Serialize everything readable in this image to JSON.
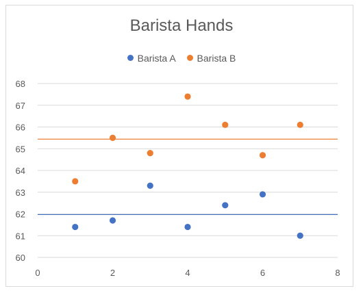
{
  "chart_data": {
    "type": "scatter",
    "title": "Barista Hands",
    "xlabel": "",
    "ylabel": "",
    "xlim": [
      0,
      8
    ],
    "ylim": [
      60,
      68
    ],
    "xticks": [
      0,
      2,
      4,
      6,
      8
    ],
    "yticks": [
      60,
      61,
      62,
      63,
      64,
      65,
      66,
      67,
      68
    ],
    "grid": true,
    "legend_position": "top",
    "series": [
      {
        "name": "Barista A",
        "color": "#4472C4",
        "points": [
          [
            1,
            61.4
          ],
          [
            2,
            61.7
          ],
          [
            3,
            63.3
          ],
          [
            4,
            61.4
          ],
          [
            5,
            62.4
          ],
          [
            6,
            62.9
          ],
          [
            7,
            61.0
          ]
        ],
        "mean_line": 61.97
      },
      {
        "name": "Barista B",
        "color": "#ED7D31",
        "points": [
          [
            1,
            63.5
          ],
          [
            2,
            65.5
          ],
          [
            3,
            64.8
          ],
          [
            4,
            67.4
          ],
          [
            5,
            66.1
          ],
          [
            6,
            64.7
          ],
          [
            7,
            66.1
          ]
        ],
        "mean_line": 65.44
      }
    ]
  }
}
